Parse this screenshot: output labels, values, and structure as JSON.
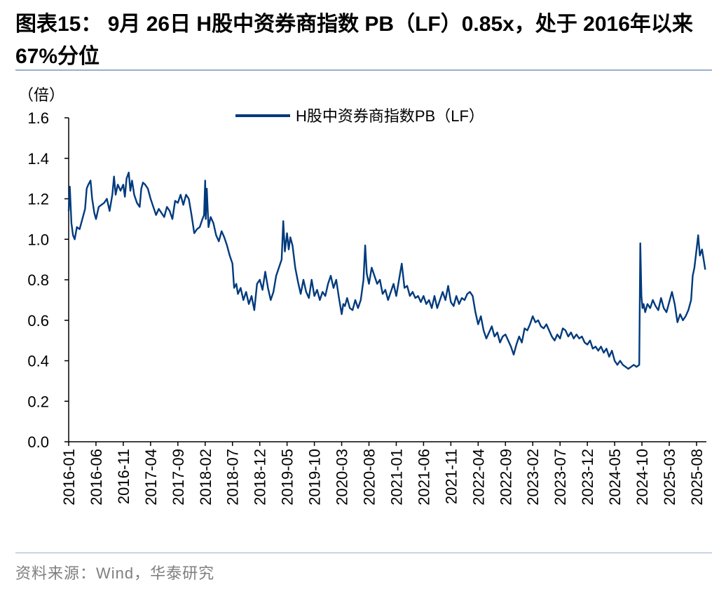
{
  "header": {
    "title": "图表15： 9月 26日 H股中资券商指数 PB（LF）0.85x，处于 2016年以来 67%分位"
  },
  "footer": {
    "source": "资料来源：Wind，华泰研究"
  },
  "colors": {
    "series": "#003a7d",
    "axis": "#000000",
    "rule": "#9aaecb"
  },
  "chart_data": {
    "type": "line",
    "title": "H股中资券商指数 PB（LF）0.85x，处于 2016年以来 67%分位",
    "ylabel": "（倍）",
    "xlabel": "",
    "ylim": [
      0.0,
      1.6
    ],
    "yticks": [
      "0.0",
      "0.2",
      "0.4",
      "0.6",
      "0.8",
      "1.0",
      "1.2",
      "1.4",
      "1.6"
    ],
    "xlim": [
      0,
      116.8
    ],
    "xticks": [
      {
        "label": "2016-01",
        "month": 0
      },
      {
        "label": "2016-06",
        "month": 5
      },
      {
        "label": "2016-11",
        "month": 10
      },
      {
        "label": "2017-04",
        "month": 15
      },
      {
        "label": "2017-09",
        "month": 20
      },
      {
        "label": "2018-02",
        "month": 25
      },
      {
        "label": "2018-07",
        "month": 30
      },
      {
        "label": "2018-12",
        "month": 35
      },
      {
        "label": "2019-05",
        "month": 40
      },
      {
        "label": "2019-10",
        "month": 45
      },
      {
        "label": "2020-03",
        "month": 50
      },
      {
        "label": "2020-08",
        "month": 55
      },
      {
        "label": "2021-01",
        "month": 60
      },
      {
        "label": "2021-06",
        "month": 65
      },
      {
        "label": "2021-11",
        "month": 70
      },
      {
        "label": "2022-04",
        "month": 75
      },
      {
        "label": "2022-09",
        "month": 80
      },
      {
        "label": "2023-02",
        "month": 85
      },
      {
        "label": "2023-07",
        "month": 90
      },
      {
        "label": "2023-12",
        "month": 95
      },
      {
        "label": "2024-05",
        "month": 100
      },
      {
        "label": "2024-10",
        "month": 105
      },
      {
        "label": "2025-03",
        "month": 110
      },
      {
        "label": "2025-08",
        "month": 115
      }
    ],
    "series": [
      {
        "name": "H股中资券商指数PB（LF）",
        "x_unit": "months since 2016-01",
        "x": [
          0,
          0.2,
          0.5,
          0.8,
          1.1,
          1.5,
          2.0,
          2.5,
          3.0,
          3.3,
          3.6,
          4.0,
          4.3,
          4.7,
          5.0,
          5.5,
          6.0,
          6.5,
          7.0,
          7.5,
          8.0,
          8.3,
          8.6,
          9.0,
          9.5,
          10.0,
          10.3,
          10.6,
          11.0,
          11.3,
          11.6,
          12.0,
          12.5,
          13.0,
          13.3,
          13.6,
          14.0,
          14.5,
          15.0,
          15.5,
          16.0,
          16.5,
          17.0,
          17.5,
          18.0,
          18.5,
          19.0,
          19.5,
          20.0,
          20.5,
          21.0,
          21.5,
          22.0,
          22.5,
          23.0,
          23.5,
          24.0,
          24.5,
          24.8,
          25.0,
          25.1,
          25.3,
          25.6,
          26.0,
          26.5,
          27.0,
          27.5,
          28.0,
          28.5,
          29.0,
          29.5,
          30.0,
          30.3,
          30.7,
          31.0,
          31.5,
          32.0,
          32.5,
          33.0,
          33.5,
          34.0,
          34.5,
          35.0,
          35.5,
          36.0,
          36.5,
          37.0,
          37.5,
          38.0,
          38.5,
          39.0,
          39.3,
          39.6,
          40.0,
          40.3,
          40.6,
          41.0,
          41.5,
          42.0,
          42.5,
          43.0,
          43.5,
          44.0,
          44.5,
          45.0,
          45.5,
          46.0,
          46.5,
          47.0,
          47.5,
          48.0,
          48.5,
          49.0,
          49.5,
          50.0,
          50.3,
          50.6,
          51.0,
          51.5,
          52.0,
          52.5,
          53.0,
          53.5,
          54.0,
          54.3,
          54.6,
          55.0,
          55.5,
          56.0,
          56.5,
          57.0,
          57.5,
          58.0,
          58.5,
          59.0,
          59.5,
          60.0,
          60.5,
          61.0,
          61.5,
          62.0,
          62.5,
          63.0,
          63.5,
          64.0,
          64.5,
          65.0,
          65.5,
          66.0,
          66.5,
          67.0,
          67.5,
          68.0,
          68.5,
          69.0,
          69.5,
          70.0,
          70.5,
          71.0,
          71.5,
          72.0,
          72.5,
          73.0,
          73.5,
          74.0,
          74.5,
          75.0,
          75.5,
          76.0,
          76.5,
          77.0,
          77.5,
          78.0,
          78.5,
          79.0,
          79.5,
          80.0,
          80.5,
          81.0,
          81.5,
          82.0,
          82.5,
          83.0,
          83.5,
          84.0,
          84.5,
          85.0,
          85.5,
          86.0,
          86.5,
          87.0,
          87.5,
          88.0,
          88.5,
          89.0,
          89.5,
          90.0,
          90.5,
          91.0,
          91.5,
          92.0,
          92.5,
          93.0,
          93.5,
          94.0,
          94.5,
          95.0,
          95.5,
          96.0,
          96.5,
          97.0,
          97.5,
          98.0,
          98.5,
          99.0,
          99.5,
          100.0,
          100.5,
          101.0,
          101.5,
          102.0,
          102.5,
          103.0,
          103.5,
          104.0,
          104.5,
          104.7,
          104.9,
          105.1,
          105.3,
          105.6,
          106.0,
          106.5,
          107.0,
          107.5,
          108.0,
          108.5,
          109.0,
          109.5,
          110.0,
          110.5,
          111.0,
          111.5,
          112.0,
          112.5,
          113.0,
          113.5,
          114.0,
          114.3,
          114.6,
          115.0,
          115.3,
          115.6,
          116.0,
          116.3,
          116.6
        ],
        "values": [
          1.14,
          1.26,
          1.08,
          1.02,
          1.0,
          1.06,
          1.05,
          1.1,
          1.15,
          1.25,
          1.27,
          1.29,
          1.2,
          1.13,
          1.1,
          1.16,
          1.17,
          1.18,
          1.2,
          1.14,
          1.22,
          1.31,
          1.22,
          1.27,
          1.24,
          1.27,
          1.21,
          1.3,
          1.33,
          1.24,
          1.29,
          1.22,
          1.18,
          1.16,
          1.25,
          1.28,
          1.27,
          1.25,
          1.2,
          1.16,
          1.12,
          1.15,
          1.13,
          1.11,
          1.16,
          1.14,
          1.1,
          1.19,
          1.18,
          1.22,
          1.17,
          1.22,
          1.2,
          1.12,
          1.03,
          1.05,
          1.06,
          1.1,
          1.12,
          1.29,
          1.1,
          1.25,
          1.06,
          1.11,
          1.08,
          1.02,
          0.99,
          1.04,
          1.01,
          0.97,
          0.92,
          0.88,
          0.76,
          0.78,
          0.73,
          0.76,
          0.7,
          0.74,
          0.68,
          0.72,
          0.65,
          0.78,
          0.8,
          0.75,
          0.84,
          0.76,
          0.7,
          0.74,
          0.82,
          0.86,
          0.9,
          1.09,
          0.94,
          1.03,
          0.95,
          1.01,
          0.97,
          0.86,
          0.79,
          0.73,
          0.8,
          0.74,
          0.71,
          0.8,
          0.72,
          0.75,
          0.7,
          0.74,
          0.72,
          0.78,
          0.82,
          0.76,
          0.8,
          0.71,
          0.63,
          0.68,
          0.67,
          0.71,
          0.66,
          0.65,
          0.7,
          0.66,
          0.7,
          0.8,
          0.97,
          0.83,
          0.78,
          0.86,
          0.82,
          0.78,
          0.8,
          0.73,
          0.75,
          0.7,
          0.74,
          0.78,
          0.72,
          0.8,
          0.88,
          0.76,
          0.77,
          0.72,
          0.74,
          0.71,
          0.72,
          0.69,
          0.72,
          0.68,
          0.7,
          0.66,
          0.72,
          0.66,
          0.7,
          0.74,
          0.7,
          0.77,
          0.69,
          0.67,
          0.72,
          0.68,
          0.71,
          0.7,
          0.73,
          0.74,
          0.72,
          0.64,
          0.58,
          0.62,
          0.55,
          0.51,
          0.54,
          0.57,
          0.52,
          0.54,
          0.49,
          0.52,
          0.53,
          0.5,
          0.47,
          0.43,
          0.48,
          0.52,
          0.49,
          0.56,
          0.55,
          0.58,
          0.62,
          0.59,
          0.6,
          0.57,
          0.56,
          0.58,
          0.55,
          0.52,
          0.5,
          0.53,
          0.51,
          0.56,
          0.55,
          0.52,
          0.54,
          0.51,
          0.53,
          0.51,
          0.52,
          0.49,
          0.48,
          0.5,
          0.46,
          0.47,
          0.45,
          0.47,
          0.44,
          0.46,
          0.42,
          0.45,
          0.4,
          0.38,
          0.4,
          0.38,
          0.37,
          0.36,
          0.37,
          0.38,
          0.37,
          0.38,
          0.98,
          0.72,
          0.66,
          0.68,
          0.64,
          0.68,
          0.66,
          0.7,
          0.67,
          0.65,
          0.71,
          0.66,
          0.64,
          0.69,
          0.74,
          0.68,
          0.59,
          0.63,
          0.6,
          0.62,
          0.65,
          0.7,
          0.82,
          0.86,
          0.95,
          1.02,
          0.92,
          0.95,
          0.9,
          0.85
        ]
      }
    ]
  }
}
